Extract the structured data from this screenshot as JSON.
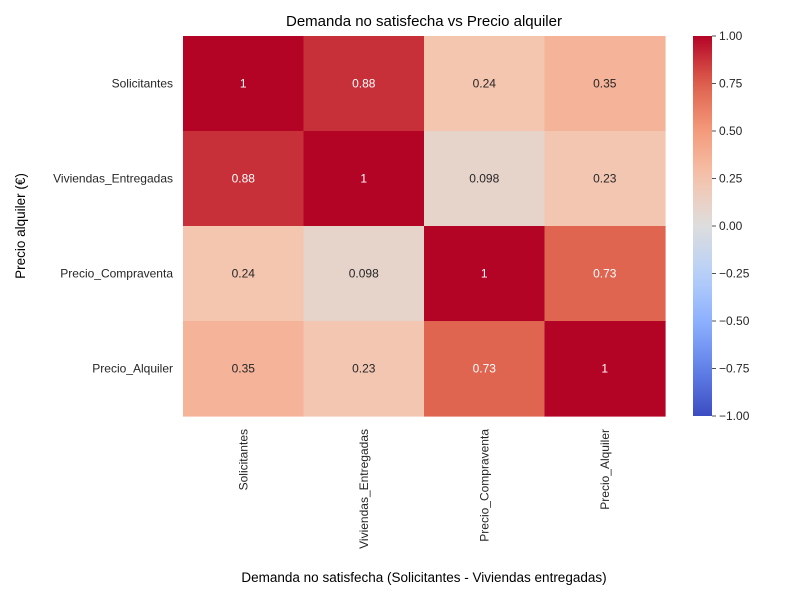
{
  "chart_data": {
    "type": "heatmap",
    "title": "Demanda no satisfecha vs Precio alquiler",
    "xlabel": "Demanda no satisfecha (Solicitantes - Viviendas entregadas)",
    "ylabel": "Precio alquiler (€)",
    "x_categories": [
      "Solicitantes",
      "Viviendas_Entregadas",
      "Precio_Compraventa",
      "Precio_Alquiler"
    ],
    "y_categories": [
      "Solicitantes",
      "Viviendas_Entregadas",
      "Precio_Compraventa",
      "Precio_Alquiler"
    ],
    "values": [
      [
        1,
        0.88,
        0.24,
        0.35
      ],
      [
        0.88,
        1,
        0.098,
        0.23
      ],
      [
        0.24,
        0.098,
        1,
        0.73
      ],
      [
        0.35,
        0.23,
        0.73,
        1
      ]
    ],
    "value_labels": [
      [
        "1",
        "0.88",
        "0.24",
        "0.35"
      ],
      [
        "0.88",
        "1",
        "0.098",
        "0.23"
      ],
      [
        "0.24",
        "0.098",
        "1",
        "0.73"
      ],
      [
        "0.35",
        "0.23",
        "0.73",
        "1"
      ]
    ],
    "vmin": -1,
    "vmax": 1,
    "colormap": "coolwarm",
    "colorbar_ticks": [
      1,
      0.75,
      0.5,
      0.25,
      0,
      -0.25,
      -0.5,
      -0.75,
      -1
    ],
    "colorbar_tick_labels": [
      "1.00",
      "0.75",
      "0.50",
      "0.25",
      "0.00",
      "−0.25",
      "−0.50",
      "−0.75",
      "−1.00"
    ],
    "grid": false
  }
}
